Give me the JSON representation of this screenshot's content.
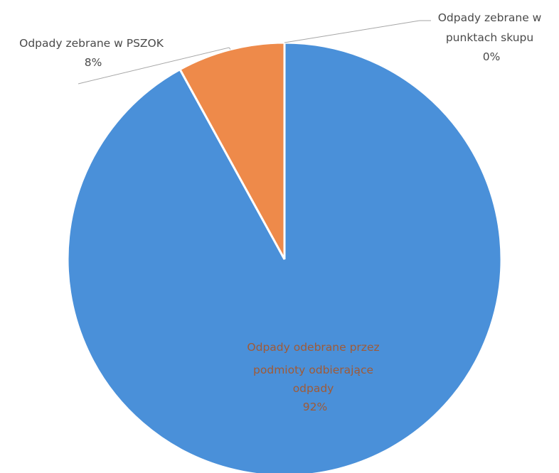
{
  "chart_data": {
    "type": "pie",
    "title": "",
    "slices": [
      {
        "label_lines": [
          "Odpady odebrane przez",
          "podmioty odbierające",
          "odpady"
        ],
        "percent_label": "92%",
        "value": 92,
        "color": "#4a90d9"
      },
      {
        "label_lines": [
          "Odpady zebrane w PSZOK"
        ],
        "percent_label": "8%",
        "value": 8,
        "color": "#ee8a4a"
      },
      {
        "label_lines": [
          "Odpady zebrane w",
          "punktach skupu"
        ],
        "percent_label": "0%",
        "value": 0,
        "color": "#a6a6a6"
      }
    ],
    "legend": "none"
  }
}
